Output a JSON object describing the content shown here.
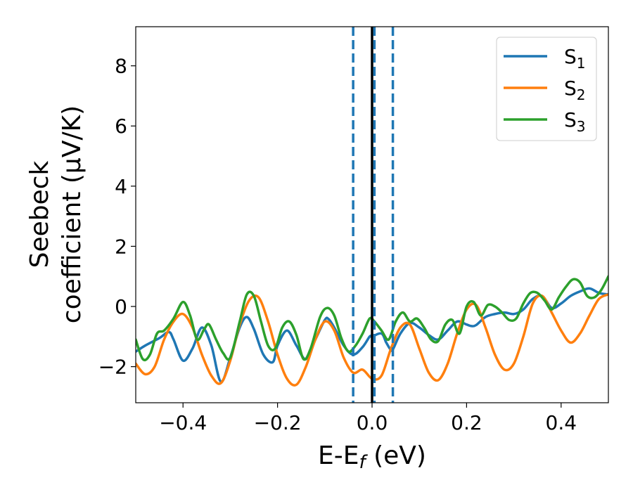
{
  "chart_data": {
    "type": "line",
    "title": "",
    "xlabel": {
      "main": "E-E",
      "sub": "f",
      "unit": " (eV)"
    },
    "ylabel": {
      "line1": "Seebeck",
      "line2": "coefficient  (μV/K)"
    },
    "xlim": [
      -0.5,
      0.5
    ],
    "ylim": [
      -3.2,
      9.3
    ],
    "xticks": [
      -0.4,
      -0.2,
      0.0,
      0.2,
      0.4
    ],
    "xtick_labels": [
      "−0.4",
      "−0.2",
      "0.0",
      "0.2",
      "0.4"
    ],
    "yticks": [
      -2,
      0,
      2,
      4,
      6,
      8
    ],
    "ytick_labels": [
      "−2",
      "0",
      "2",
      "4",
      "6",
      "8"
    ],
    "grid": false,
    "legend_position": "top-right",
    "vlines": [
      {
        "x": -0.04,
        "style": "dashed",
        "color": "#1f77b4"
      },
      {
        "x": 0.0,
        "style": "solid",
        "color": "#000000"
      },
      {
        "x": 0.005,
        "style": "dashed",
        "color": "#1f77b4"
      },
      {
        "x": 0.044,
        "style": "dashed",
        "color": "#1f77b4"
      }
    ],
    "series": [
      {
        "name": "S",
        "sub": "1",
        "color": "#1f77b4",
        "x": [
          -0.5,
          -0.48,
          -0.45,
          -0.43,
          -0.42,
          -0.4,
          -0.38,
          -0.36,
          -0.34,
          -0.32,
          -0.3,
          -0.28,
          -0.265,
          -0.25,
          -0.23,
          -0.21,
          -0.2,
          -0.18,
          -0.16,
          -0.14,
          -0.12,
          -0.1,
          -0.092,
          -0.08,
          -0.06,
          -0.04,
          -0.02,
          -0.005,
          0.0,
          0.02,
          0.03,
          0.04,
          0.045,
          0.06,
          0.08,
          0.1,
          0.12,
          0.14,
          0.16,
          0.18,
          0.2,
          0.21,
          0.22,
          0.24,
          0.26,
          0.28,
          0.3,
          0.32,
          0.34,
          0.36,
          0.38,
          0.4,
          0.42,
          0.44,
          0.46,
          0.48,
          0.5
        ],
        "y": [
          -1.5,
          -1.3,
          -1.05,
          -0.85,
          -1.1,
          -1.8,
          -1.4,
          -0.7,
          -1.3,
          -2.5,
          -1.7,
          -0.7,
          -0.35,
          -0.75,
          -1.6,
          -1.85,
          -1.3,
          -0.8,
          -1.3,
          -1.75,
          -1.1,
          -0.45,
          -0.42,
          -0.7,
          -1.3,
          -1.6,
          -1.35,
          -1.0,
          -1.0,
          -0.9,
          -1.2,
          -1.45,
          -1.4,
          -0.9,
          -0.55,
          -0.7,
          -0.95,
          -1.1,
          -0.8,
          -0.5,
          -0.6,
          -0.65,
          -0.62,
          -0.35,
          -0.25,
          -0.2,
          -0.25,
          -0.1,
          0.25,
          0.35,
          -0.05,
          0.1,
          0.35,
          0.5,
          0.6,
          0.45,
          0.4
        ]
      },
      {
        "name": "S",
        "sub": "2",
        "color": "#ff7f0e",
        "x": [
          -0.5,
          -0.48,
          -0.46,
          -0.44,
          -0.42,
          -0.4,
          -0.38,
          -0.36,
          -0.34,
          -0.32,
          -0.3,
          -0.28,
          -0.26,
          -0.24,
          -0.22,
          -0.2,
          -0.18,
          -0.16,
          -0.14,
          -0.12,
          -0.1,
          -0.08,
          -0.06,
          -0.04,
          -0.02,
          0.0,
          0.02,
          0.04,
          0.06,
          0.08,
          0.1,
          0.12,
          0.14,
          0.16,
          0.18,
          0.2,
          0.22,
          0.24,
          0.26,
          0.28,
          0.3,
          0.32,
          0.34,
          0.36,
          0.38,
          0.4,
          0.42,
          0.44,
          0.46,
          0.48,
          0.5
        ],
        "y": [
          -1.9,
          -2.25,
          -2.0,
          -1.1,
          -0.5,
          -0.25,
          -0.7,
          -1.6,
          -2.3,
          -2.55,
          -1.8,
          -0.6,
          0.2,
          0.3,
          -0.5,
          -1.6,
          -2.4,
          -2.6,
          -2.0,
          -1.1,
          -0.5,
          -0.8,
          -1.7,
          -2.2,
          -2.1,
          -2.4,
          -2.3,
          -1.4,
          -0.7,
          -0.6,
          -1.4,
          -2.2,
          -2.45,
          -1.9,
          -0.9,
          -0.1,
          0.05,
          -0.7,
          -1.6,
          -2.1,
          -1.9,
          -1.0,
          0.1,
          0.35,
          -0.2,
          -0.8,
          -1.2,
          -0.9,
          -0.3,
          0.25,
          0.4
        ]
      },
      {
        "name": "S",
        "sub": "3",
        "color": "#2ca02c",
        "x": [
          -0.5,
          -0.485,
          -0.47,
          -0.455,
          -0.44,
          -0.42,
          -0.4,
          -0.385,
          -0.37,
          -0.355,
          -0.345,
          -0.33,
          -0.315,
          -0.3,
          -0.28,
          -0.265,
          -0.25,
          -0.235,
          -0.22,
          -0.205,
          -0.19,
          -0.175,
          -0.16,
          -0.145,
          -0.13,
          -0.11,
          -0.095,
          -0.08,
          -0.065,
          -0.05,
          -0.035,
          -0.02,
          -0.005,
          0.005,
          0.02,
          0.035,
          0.05,
          0.065,
          0.08,
          0.095,
          0.11,
          0.125,
          0.14,
          0.155,
          0.17,
          0.185,
          0.2,
          0.215,
          0.23,
          0.245,
          0.26,
          0.275,
          0.29,
          0.305,
          0.32,
          0.335,
          0.35,
          0.365,
          0.38,
          0.395,
          0.41,
          0.425,
          0.44,
          0.455,
          0.47,
          0.485,
          0.5
        ],
        "y": [
          -1.1,
          -1.75,
          -1.6,
          -0.9,
          -0.8,
          -0.4,
          0.15,
          -0.3,
          -1.1,
          -0.75,
          -0.6,
          -1.1,
          -1.55,
          -1.7,
          -0.5,
          0.4,
          0.35,
          -0.5,
          -1.3,
          -1.4,
          -0.7,
          -0.5,
          -0.95,
          -1.75,
          -1.4,
          -0.35,
          -0.05,
          -0.3,
          -1.05,
          -1.5,
          -1.3,
          -0.9,
          -0.4,
          -0.5,
          -0.8,
          -1.1,
          -0.5,
          -0.2,
          -0.5,
          -0.4,
          -0.7,
          -1.1,
          -1.15,
          -0.6,
          -0.45,
          -0.9,
          0.0,
          0.15,
          -0.3,
          0.05,
          0.0,
          -0.2,
          -0.45,
          -0.4,
          0.1,
          0.45,
          0.45,
          0.2,
          -0.1,
          0.3,
          0.65,
          0.9,
          0.8,
          0.35,
          0.3,
          0.55,
          1.0
        ]
      }
    ]
  }
}
